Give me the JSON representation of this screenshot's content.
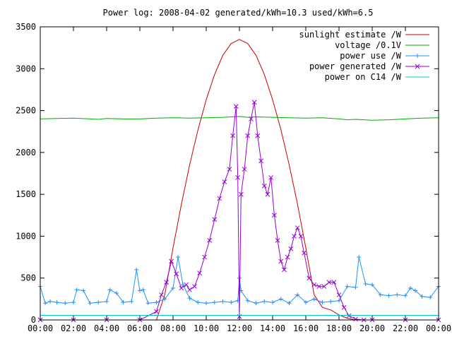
{
  "chart_data": {
    "type": "line",
    "title": "Power log: 2008-04-02 generated/kWh=10.3 used/kWh=6.5",
    "x_unit": "time of day (hours)",
    "xlim": [
      0,
      24
    ],
    "ylim": [
      0,
      3500
    ],
    "x_ticks": [
      0,
      2,
      4,
      6,
      8,
      10,
      12,
      14,
      16,
      18,
      20,
      22,
      24
    ],
    "x_tick_labels": [
      "00:00",
      "02:00",
      "04:00",
      "06:00",
      "08:00",
      "10:00",
      "12:00",
      "14:00",
      "16:00",
      "18:00",
      "20:00",
      "22:00",
      "00:00"
    ],
    "y_ticks": [
      0,
      500,
      1000,
      1500,
      2000,
      2500,
      3000,
      3500
    ],
    "y_tick_labels": [
      "0",
      "500",
      "1000",
      "1500",
      "2000",
      "2500",
      "3000",
      "3500"
    ],
    "grid": false,
    "legend_position": "top-right",
    "series": [
      {
        "name": "sunlight estimate /W",
        "color": "#cc0000",
        "marker": "none",
        "x": [
          7.0,
          7.5,
          8.0,
          8.5,
          9.0,
          9.5,
          10.0,
          10.5,
          11.0,
          11.5,
          12.0,
          12.5,
          13.0,
          13.5,
          14.0,
          14.5,
          15.0,
          15.5,
          16.0,
          16.5,
          17.0,
          17.5,
          18.0,
          18.5,
          19.0
        ],
        "y": [
          0,
          300,
          860,
          1380,
          1850,
          2270,
          2630,
          2930,
          3160,
          3300,
          3350,
          3300,
          3160,
          2930,
          2630,
          2270,
          1850,
          1380,
          860,
          300,
          150,
          120,
          60,
          20,
          0
        ]
      },
      {
        "name": "voltage /0.1V",
        "color": "#00aa00",
        "marker": "none",
        "x": [
          0,
          1,
          2,
          3,
          3.5,
          4,
          5,
          6,
          7,
          8,
          9,
          10,
          11,
          11.5,
          12,
          12.5,
          13,
          14,
          15,
          16,
          17,
          18,
          18.5,
          19,
          20,
          21,
          22,
          23,
          24
        ],
        "y": [
          2400,
          2405,
          2410,
          2400,
          2395,
          2405,
          2400,
          2400,
          2410,
          2415,
          2410,
          2415,
          2420,
          2425,
          2430,
          2420,
          2425,
          2420,
          2415,
          2410,
          2415,
          2400,
          2390,
          2395,
          2385,
          2390,
          2400,
          2410,
          2415
        ]
      },
      {
        "name": "power use /W",
        "color": "#1e90ff",
        "marker": "plus",
        "x": [
          0,
          0.3,
          0.6,
          1,
          1.5,
          2,
          2.2,
          2.6,
          3,
          3.5,
          4,
          4.2,
          4.6,
          5,
          5.5,
          5.8,
          6.0,
          6.2,
          6.5,
          7,
          7.5,
          8,
          8.3,
          8.6,
          9,
          9.5,
          10,
          10.5,
          11,
          11.5,
          11.9,
          12.0,
          12.1,
          12.5,
          13,
          13.5,
          14,
          14.5,
          15,
          15.5,
          16,
          16.5,
          17,
          17.5,
          18,
          18.5,
          19,
          19.2,
          19.6,
          20,
          20.5,
          21,
          21.5,
          22,
          22.3,
          22.6,
          23,
          23.5,
          24
        ],
        "y": [
          400,
          200,
          220,
          210,
          200,
          210,
          360,
          350,
          200,
          210,
          220,
          360,
          320,
          210,
          220,
          600,
          350,
          360,
          200,
          210,
          250,
          380,
          750,
          420,
          260,
          210,
          200,
          210,
          220,
          210,
          230,
          500,
          350,
          230,
          200,
          220,
          210,
          250,
          200,
          300,
          210,
          250,
          210,
          220,
          230,
          400,
          390,
          750,
          430,
          420,
          300,
          290,
          300,
          290,
          380,
          350,
          280,
          270,
          400
        ]
      },
      {
        "name": "power generated /W",
        "color": "#9400d3",
        "marker": "cross",
        "x": [
          0,
          2,
          4,
          6,
          7.0,
          7.3,
          7.6,
          7.9,
          8.2,
          8.5,
          8.8,
          9.0,
          9.3,
          9.6,
          9.9,
          10.2,
          10.5,
          10.8,
          11.1,
          11.4,
          11.6,
          11.8,
          11.9,
          12.0,
          12.1,
          12.3,
          12.5,
          12.7,
          12.9,
          13.1,
          13.3,
          13.5,
          13.7,
          13.9,
          14.1,
          14.3,
          14.5,
          14.7,
          14.9,
          15.1,
          15.3,
          15.5,
          15.7,
          15.9,
          16.2,
          16.5,
          16.8,
          17.1,
          17.4,
          17.7,
          18.0,
          18.3,
          18.6,
          19.0,
          19.5,
          20,
          22,
          24
        ],
        "y": [
          0,
          0,
          0,
          0,
          100,
          300,
          450,
          700,
          550,
          380,
          420,
          360,
          400,
          560,
          750,
          950,
          1200,
          1450,
          1650,
          1800,
          2200,
          2550,
          1700,
          40,
          1500,
          1800,
          2200,
          2400,
          2600,
          2200,
          1900,
          1600,
          1500,
          1700,
          1250,
          950,
          700,
          600,
          750,
          850,
          1000,
          1100,
          1000,
          800,
          500,
          420,
          400,
          400,
          450,
          450,
          300,
          150,
          50,
          10,
          0,
          0,
          0,
          0
        ]
      },
      {
        "name": "power on C14 /W",
        "color": "#00cccc",
        "marker": "none",
        "x": [
          0,
          2,
          4,
          6,
          8,
          10,
          12,
          14,
          16,
          18,
          20,
          22,
          24
        ],
        "y": [
          55,
          55,
          55,
          55,
          55,
          55,
          55,
          55,
          55,
          55,
          55,
          55,
          55
        ]
      }
    ]
  }
}
